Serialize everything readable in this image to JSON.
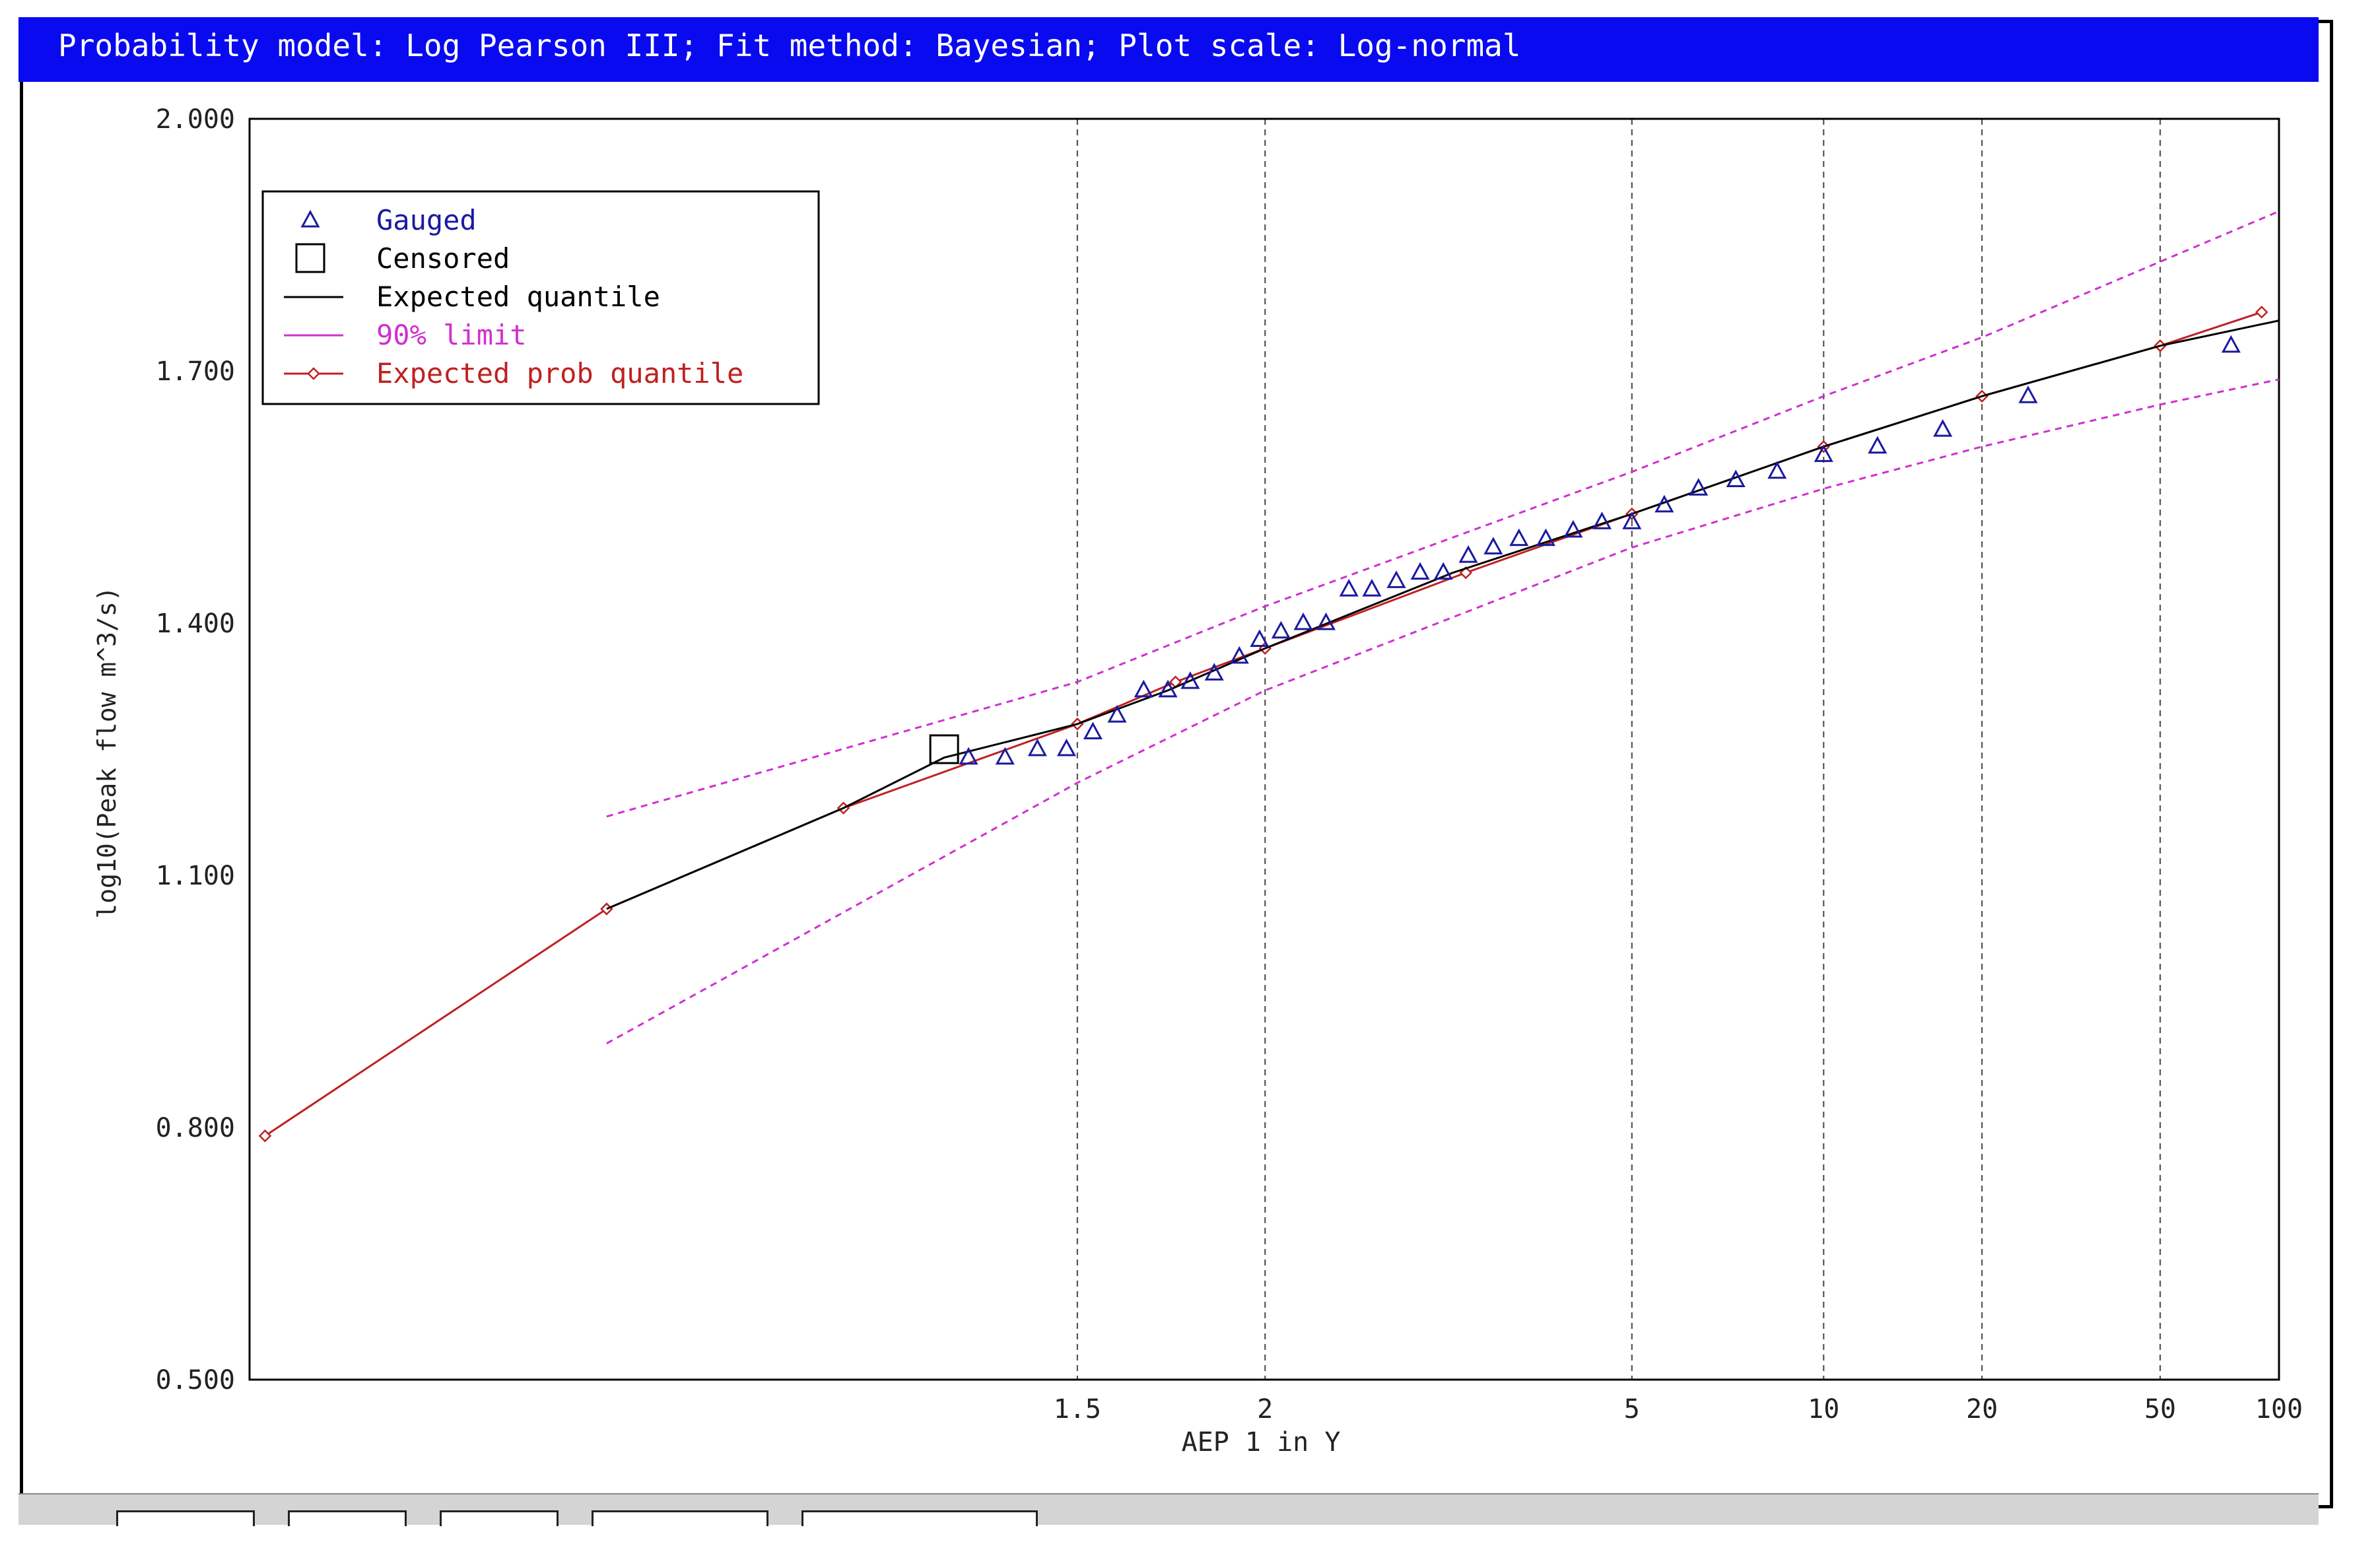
{
  "window": {
    "title": "Probability model: Log Pearson III; Fit method: Bayesian; Plot scale: Log-normal"
  },
  "colors": {
    "titlebar": "#0a0af0",
    "gauged": "#1a1aa0",
    "expected_quantile": "#000000",
    "limit90": "#d030d0",
    "expected_prob": "#c02020",
    "gridline": "#555555"
  },
  "bottom_tabs": [
    {
      "label": ""
    },
    {
      "label": ""
    },
    {
      "label": ""
    },
    {
      "label": ""
    },
    {
      "label": ""
    }
  ],
  "chart_data": {
    "type": "scatter",
    "title": "",
    "xlabel": "AEP 1 in Y",
    "ylabel": "log10(Peak flow m^3/s)",
    "x_scale": "log-normal probability (AEP 1 in Y)",
    "xlim": [
      1.01,
      100
    ],
    "ylim": [
      0.5,
      2.0
    ],
    "xticks": [
      1.5,
      2,
      5,
      10,
      20,
      50,
      100
    ],
    "xtick_labels": [
      "1.5",
      "2",
      "5",
      "10",
      "20",
      "50",
      "100"
    ],
    "yticks": [
      0.5,
      0.8,
      1.1,
      1.4,
      1.7,
      2.0
    ],
    "ytick_labels": [
      "0.500",
      "0.800",
      "1.100",
      "1.400",
      "1.700",
      "2.000"
    ],
    "grid": "vertical dashed at x ticks",
    "legend": {
      "position": "top-left",
      "entries": [
        {
          "label": "Gauged",
          "marker": "triangle",
          "color": "#1a1aa0"
        },
        {
          "label": "Censored",
          "marker": "square",
          "color": "#000000"
        },
        {
          "label": "Expected quantile",
          "marker": "line",
          "color": "#000000"
        },
        {
          "label": "90% limit",
          "marker": "line",
          "color": "#d030d0"
        },
        {
          "label": "Expected prob quantile",
          "marker": "line-diamond",
          "color": "#c02020"
        }
      ]
    },
    "series": [
      {
        "name": "Gauged",
        "points": [
          [
            1.33,
            1.24
          ],
          [
            1.38,
            1.24
          ],
          [
            1.43,
            1.25
          ],
          [
            1.48,
            1.25
          ],
          [
            1.53,
            1.27
          ],
          [
            1.58,
            1.29
          ],
          [
            1.64,
            1.32
          ],
          [
            1.7,
            1.32
          ],
          [
            1.76,
            1.33
          ],
          [
            1.83,
            1.34
          ],
          [
            1.91,
            1.36
          ],
          [
            1.98,
            1.38
          ],
          [
            2.06,
            1.39
          ],
          [
            2.15,
            1.4
          ],
          [
            2.25,
            1.4
          ],
          [
            2.36,
            1.44
          ],
          [
            2.48,
            1.44
          ],
          [
            2.62,
            1.45
          ],
          [
            2.77,
            1.46
          ],
          [
            2.93,
            1.46
          ],
          [
            3.12,
            1.48
          ],
          [
            3.33,
            1.49
          ],
          [
            3.57,
            1.5
          ],
          [
            3.85,
            1.5
          ],
          [
            4.17,
            1.51
          ],
          [
            4.55,
            1.52
          ],
          [
            5.0,
            1.52
          ],
          [
            5.56,
            1.54
          ],
          [
            6.25,
            1.56
          ],
          [
            7.14,
            1.57
          ],
          [
            8.33,
            1.58
          ],
          [
            10.0,
            1.6
          ],
          [
            12.5,
            1.61
          ],
          [
            16.67,
            1.63
          ],
          [
            25.0,
            1.67
          ],
          [
            75.0,
            1.73
          ]
        ]
      },
      {
        "name": "Censored",
        "points": [
          [
            1.3,
            1.25
          ]
        ]
      },
      {
        "name": "Expected quantile",
        "points": [
          [
            1.07,
            1.06
          ],
          [
            1.2,
            1.18
          ],
          [
            1.3,
            1.24
          ],
          [
            1.5,
            1.28
          ],
          [
            1.7,
            1.32
          ],
          [
            2.0,
            1.37
          ],
          [
            3.0,
            1.46
          ],
          [
            5.0,
            1.53
          ],
          [
            10.0,
            1.61
          ],
          [
            20.0,
            1.67
          ],
          [
            50.0,
            1.73
          ],
          [
            100.0,
            1.76
          ]
        ]
      },
      {
        "name": "90% limit",
        "points": [
          [
            1.07,
            1.17
          ],
          [
            1.5,
            1.33
          ],
          [
            2.0,
            1.42
          ],
          [
            5.0,
            1.58
          ],
          [
            10.0,
            1.67
          ],
          [
            20.0,
            1.74
          ],
          [
            50.0,
            1.83
          ],
          [
            100.0,
            1.89
          ]
        ]
      },
      {
        "name": "90% limit",
        "points": [
          [
            1.07,
            0.9
          ],
          [
            1.5,
            1.21
          ],
          [
            2.0,
            1.32
          ],
          [
            5.0,
            1.49
          ],
          [
            10.0,
            1.56
          ],
          [
            20.0,
            1.61
          ],
          [
            50.0,
            1.66
          ],
          [
            100.0,
            1.69
          ]
        ]
      },
      {
        "name": "Expected prob quantile",
        "points": [
          [
            1.011,
            0.79
          ],
          [
            1.07,
            1.06
          ],
          [
            1.2,
            1.18
          ],
          [
            1.5,
            1.28
          ],
          [
            1.72,
            1.33
          ],
          [
            2.0,
            1.37
          ],
          [
            3.1,
            1.46
          ],
          [
            5.0,
            1.53
          ],
          [
            10.0,
            1.61
          ],
          [
            20.0,
            1.67
          ],
          [
            50.0,
            1.73
          ],
          [
            90.0,
            1.77
          ]
        ]
      }
    ]
  }
}
